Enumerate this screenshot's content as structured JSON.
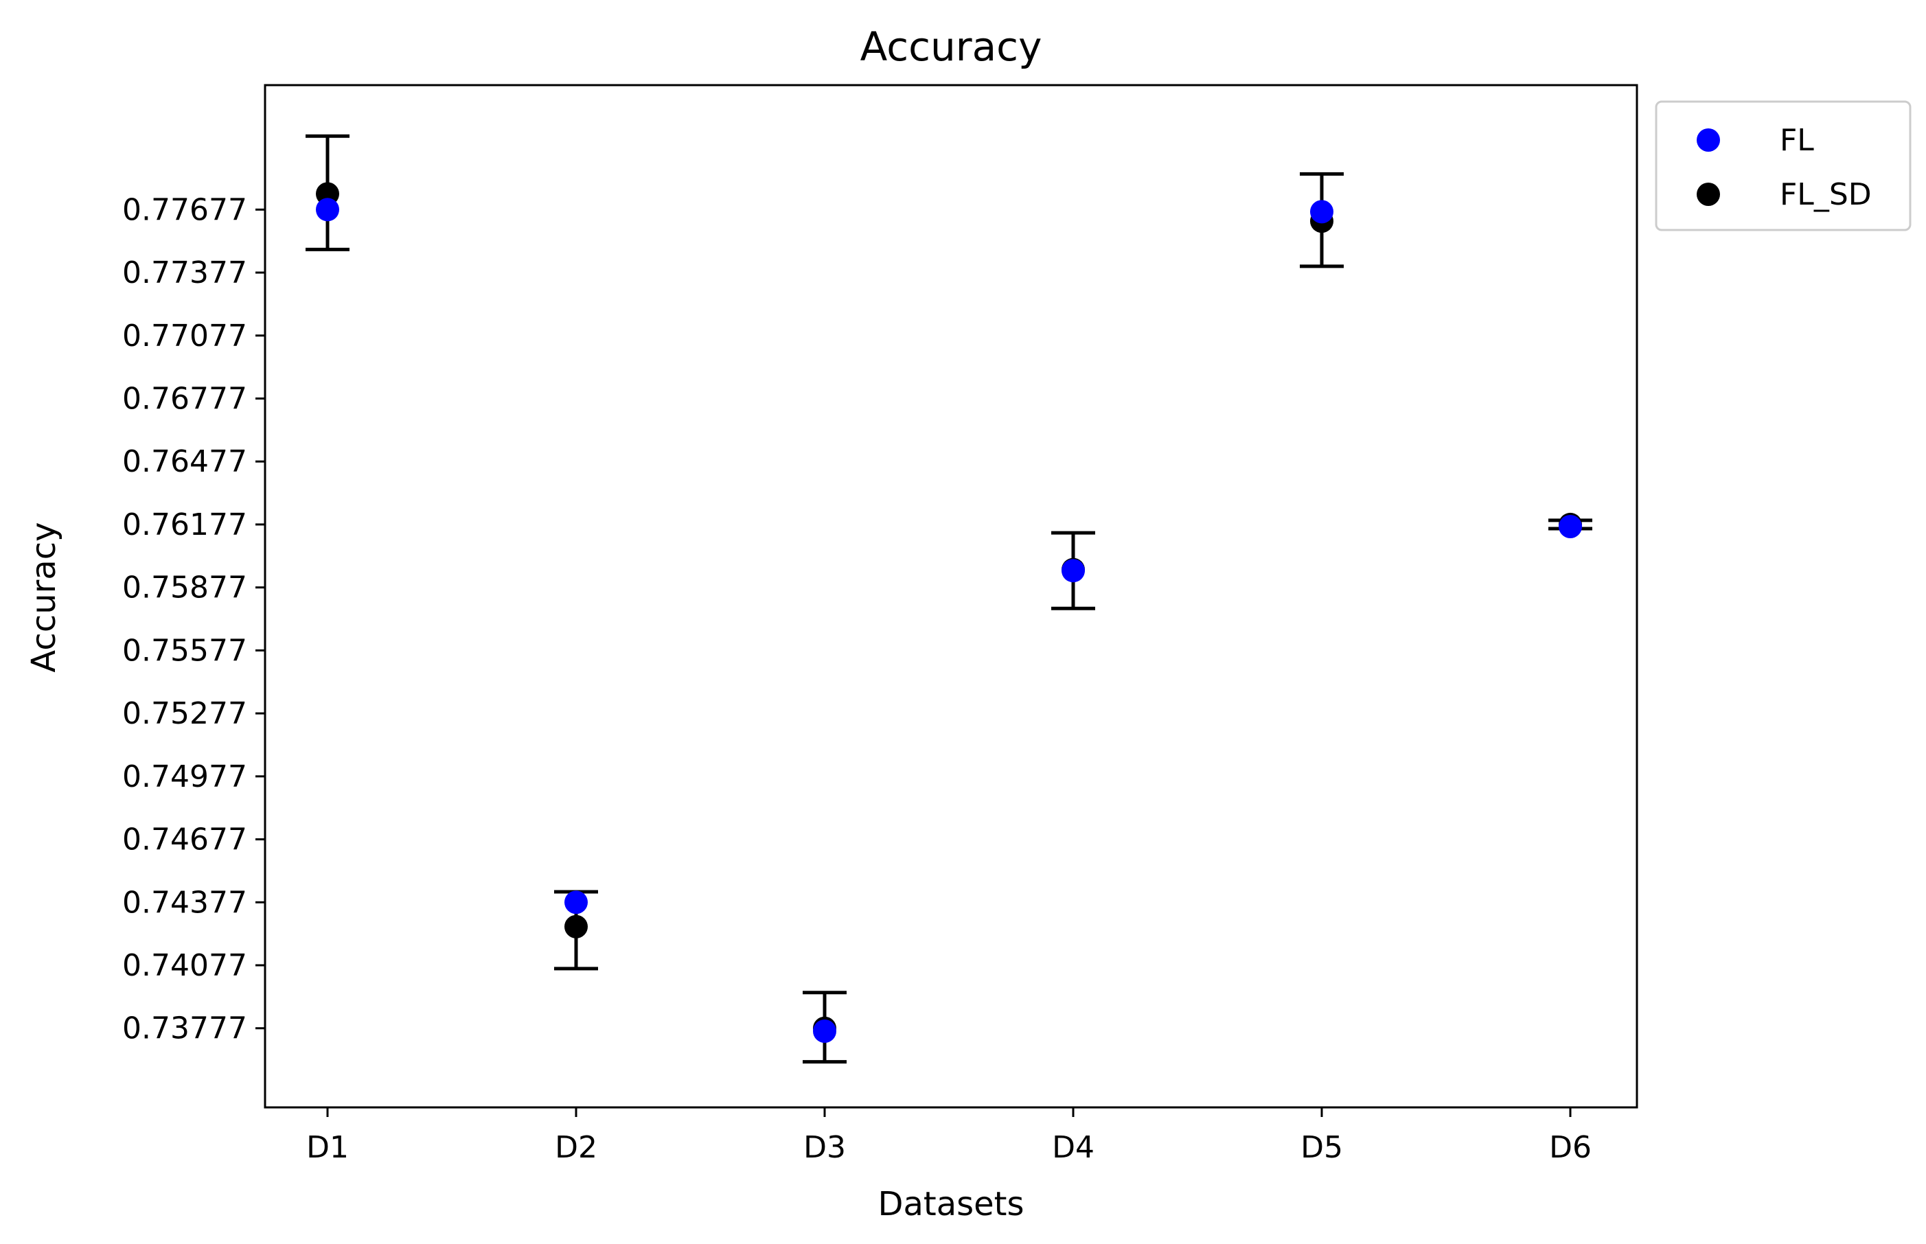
{
  "chart_data": {
    "type": "scatter",
    "title": "Accuracy",
    "xlabel": "Datasets",
    "ylabel": "Accuracy",
    "categories": [
      "D1",
      "D2",
      "D3",
      "D4",
      "D5",
      "D6"
    ],
    "ylim": [
      0.734,
      0.7827
    ],
    "yticks": [
      0.73777,
      0.74077,
      0.74377,
      0.74677,
      0.74977,
      0.75277,
      0.75577,
      0.75877,
      0.76177,
      0.76477,
      0.76777,
      0.77077,
      0.77377,
      0.77677
    ],
    "ytick_labels": [
      "0.73777",
      "0.74077",
      "0.74377",
      "0.74677",
      "0.74977",
      "0.75277",
      "0.75577",
      "0.75877",
      "0.76177",
      "0.76477",
      "0.76777",
      "0.77077",
      "0.77377",
      "0.77677"
    ],
    "series": [
      {
        "name": "FL",
        "color": "#0000ff",
        "values": [
          0.77677,
          0.74377,
          0.73763,
          0.75957,
          0.77667,
          0.76167
        ]
      },
      {
        "name": "FL_SD",
        "color": "#000000",
        "values": [
          0.77752,
          0.74261,
          0.73777,
          0.75962,
          0.77622,
          0.76177
        ],
        "error_low": [
          0.77487,
          0.74061,
          0.73617,
          0.75777,
          0.77407,
          0.76157
        ],
        "error_high": [
          0.78027,
          0.74427,
          0.73947,
          0.76137,
          0.77847,
          0.76197
        ]
      }
    ],
    "grid": false,
    "legend_position": "outside-top-right"
  }
}
